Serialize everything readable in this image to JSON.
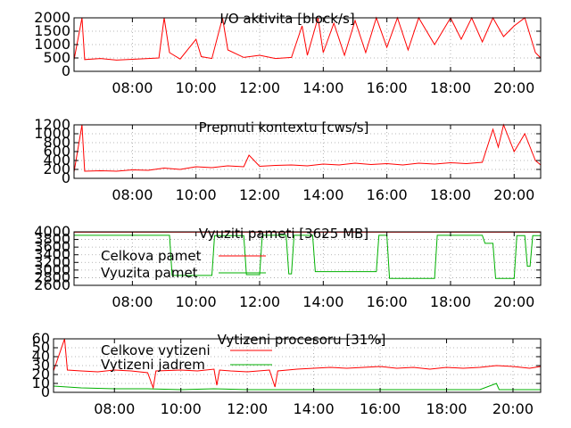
{
  "colors": {
    "red": "#ff0000",
    "green": "#00b000",
    "axis": "#000000",
    "grid": "#a0a0a0"
  },
  "chart_data": [
    {
      "type": "line",
      "title": "I/O aktivita [block/s]",
      "x_range": [
        "06:10",
        "20:50"
      ],
      "x_ticks": [
        "08:00",
        "10:00",
        "12:00",
        "14:00",
        "16:00",
        "18:00",
        "20:00"
      ],
      "y_ticks": [
        "0",
        "500",
        "1000",
        "1500",
        "2000"
      ],
      "ylim": [
        0,
        2000
      ],
      "series": [
        {
          "color": "#ff0000",
          "points": [
            [
              "06:10",
              430
            ],
            [
              "06:25",
              2000
            ],
            [
              "06:30",
              440
            ],
            [
              "07:00",
              480
            ],
            [
              "07:30",
              420
            ],
            [
              "08:00",
              450
            ],
            [
              "08:30",
              480
            ],
            [
              "08:50",
              500
            ],
            [
              "09:00",
              2000
            ],
            [
              "09:10",
              700
            ],
            [
              "09:30",
              460
            ],
            [
              "10:00",
              1200
            ],
            [
              "10:10",
              550
            ],
            [
              "10:30",
              480
            ],
            [
              "10:50",
              2000
            ],
            [
              "11:00",
              800
            ],
            [
              "11:30",
              520
            ],
            [
              "12:00",
              600
            ],
            [
              "12:30",
              480
            ],
            [
              "13:00",
              520
            ],
            [
              "13:20",
              1700
            ],
            [
              "13:30",
              600
            ],
            [
              "13:50",
              2000
            ],
            [
              "14:00",
              700
            ],
            [
              "14:20",
              1800
            ],
            [
              "14:40",
              600
            ],
            [
              "15:00",
              1900
            ],
            [
              "15:20",
              700
            ],
            [
              "15:40",
              2000
            ],
            [
              "16:00",
              900
            ],
            [
              "16:20",
              2000
            ],
            [
              "16:40",
              800
            ],
            [
              "17:00",
              2000
            ],
            [
              "17:30",
              1000
            ],
            [
              "18:00",
              2000
            ],
            [
              "18:20",
              1200
            ],
            [
              "18:40",
              2000
            ],
            [
              "19:00",
              1100
            ],
            [
              "19:20",
              2000
            ],
            [
              "19:40",
              1300
            ],
            [
              "20:00",
              1700
            ],
            [
              "20:20",
              2000
            ],
            [
              "20:40",
              700
            ],
            [
              "20:50",
              500
            ]
          ]
        }
      ]
    },
    {
      "type": "line",
      "title": "Prepnuti kontextu [cws/s]",
      "x_range": [
        "06:10",
        "20:50"
      ],
      "x_ticks": [
        "08:00",
        "10:00",
        "12:00",
        "14:00",
        "16:00",
        "18:00",
        "20:00"
      ],
      "y_ticks": [
        "0",
        "200",
        "400",
        "600",
        "800",
        "1000",
        "1200"
      ],
      "ylim": [
        0,
        1200
      ],
      "series": [
        {
          "color": "#ff0000",
          "points": [
            [
              "06:10",
              140
            ],
            [
              "06:25",
              1200
            ],
            [
              "06:30",
              160
            ],
            [
              "07:00",
              170
            ],
            [
              "07:30",
              160
            ],
            [
              "08:00",
              190
            ],
            [
              "08:30",
              180
            ],
            [
              "09:00",
              230
            ],
            [
              "09:30",
              200
            ],
            [
              "10:00",
              260
            ],
            [
              "10:30",
              240
            ],
            [
              "11:00",
              280
            ],
            [
              "11:30",
              260
            ],
            [
              "11:40",
              520
            ],
            [
              "12:00",
              270
            ],
            [
              "12:30",
              290
            ],
            [
              "13:00",
              300
            ],
            [
              "13:30",
              280
            ],
            [
              "14:00",
              320
            ],
            [
              "14:30",
              300
            ],
            [
              "15:00",
              340
            ],
            [
              "15:30",
              310
            ],
            [
              "16:00",
              330
            ],
            [
              "16:30",
              300
            ],
            [
              "17:00",
              340
            ],
            [
              "17:30",
              320
            ],
            [
              "18:00",
              350
            ],
            [
              "18:30",
              330
            ],
            [
              "19:00",
              360
            ],
            [
              "19:20",
              1100
            ],
            [
              "19:30",
              700
            ],
            [
              "19:40",
              1200
            ],
            [
              "20:00",
              600
            ],
            [
              "20:20",
              1000
            ],
            [
              "20:40",
              400
            ],
            [
              "20:50",
              300
            ]
          ]
        }
      ]
    },
    {
      "type": "line",
      "title": "Vyuziti pameti [3625 MB]",
      "x_range": [
        "06:10",
        "20:50"
      ],
      "x_ticks": [
        "08:00",
        "10:00",
        "12:00",
        "14:00",
        "16:00",
        "18:00",
        "20:00"
      ],
      "y_ticks": [
        "2600",
        "2800",
        "3000",
        "3200",
        "3400",
        "3600",
        "3800",
        "4000"
      ],
      "ylim": [
        2600,
        4000
      ],
      "series": [
        {
          "name": "Celkova pamet",
          "color": "#ff0000",
          "points": [
            [
              "06:10",
              3990
            ],
            [
              "20:50",
              3990
            ]
          ]
        },
        {
          "name": "Vyuzita pamet",
          "color": "#00b000",
          "points": [
            [
              "06:10",
              3910
            ],
            [
              "09:10",
              3910
            ],
            [
              "09:15",
              2860
            ],
            [
              "10:30",
              2860
            ],
            [
              "10:35",
              3900
            ],
            [
              "11:30",
              3900
            ],
            [
              "11:35",
              2880
            ],
            [
              "12:00",
              2880
            ],
            [
              "12:05",
              3910
            ],
            [
              "12:50",
              3910
            ],
            [
              "12:55",
              2900
            ],
            [
              "13:00",
              2900
            ],
            [
              "13:05",
              3910
            ],
            [
              "13:40",
              3910
            ],
            [
              "13:45",
              2960
            ],
            [
              "15:40",
              2960
            ],
            [
              "15:45",
              3910
            ],
            [
              "16:00",
              3910
            ],
            [
              "16:05",
              2780
            ],
            [
              "17:30",
              2780
            ],
            [
              "17:35",
              3910
            ],
            [
              "19:00",
              3910
            ],
            [
              "19:05",
              3700
            ],
            [
              "19:20",
              3700
            ],
            [
              "19:25",
              2780
            ],
            [
              "20:00",
              2780
            ],
            [
              "20:05",
              3900
            ],
            [
              "20:20",
              3900
            ],
            [
              "20:25",
              3100
            ],
            [
              "20:30",
              3100
            ],
            [
              "20:35",
              3900
            ],
            [
              "20:50",
              3900
            ]
          ]
        }
      ]
    },
    {
      "type": "line",
      "title": "Vytizeni procesoru [31%]",
      "x_range": [
        "06:10",
        "20:50"
      ],
      "x_ticks": [
        "08:00",
        "10:00",
        "12:00",
        "14:00",
        "16:00",
        "18:00",
        "20:00"
      ],
      "y_ticks": [
        "0",
        "10",
        "20",
        "30",
        "40",
        "50",
        "60"
      ],
      "ylim": [
        0,
        60
      ],
      "series": [
        {
          "name": "Celkove vytizeni",
          "color": "#ff0000",
          "points": [
            [
              "06:10",
              24
            ],
            [
              "06:30",
              60
            ],
            [
              "06:35",
              25
            ],
            [
              "07:00",
              24
            ],
            [
              "07:30",
              23
            ],
            [
              "08:00",
              25
            ],
            [
              "08:30",
              24
            ],
            [
              "09:00",
              22
            ],
            [
              "09:10",
              5
            ],
            [
              "09:15",
              24
            ],
            [
              "10:00",
              25
            ],
            [
              "10:30",
              24
            ],
            [
              "11:00",
              26
            ],
            [
              "11:05",
              8
            ],
            [
              "11:10",
              25
            ],
            [
              "11:30",
              24
            ],
            [
              "12:00",
              23
            ],
            [
              "12:40",
              25
            ],
            [
              "12:50",
              6
            ],
            [
              "12:55",
              24
            ],
            [
              "13:30",
              26
            ],
            [
              "14:00",
              27
            ],
            [
              "14:30",
              28
            ],
            [
              "15:00",
              27
            ],
            [
              "15:30",
              28
            ],
            [
              "16:00",
              29
            ],
            [
              "16:30",
              27
            ],
            [
              "17:00",
              28
            ],
            [
              "17:30",
              26
            ],
            [
              "18:00",
              28
            ],
            [
              "18:30",
              27
            ],
            [
              "19:00",
              28
            ],
            [
              "19:30",
              30
            ],
            [
              "20:00",
              29
            ],
            [
              "20:30",
              27
            ],
            [
              "20:50",
              29
            ]
          ]
        },
        {
          "name": "Vytizeni jadrem",
          "color": "#00b000",
          "points": [
            [
              "06:10",
              7
            ],
            [
              "07:00",
              5
            ],
            [
              "08:00",
              4
            ],
            [
              "09:00",
              4
            ],
            [
              "10:00",
              3
            ],
            [
              "11:00",
              4
            ],
            [
              "12:00",
              3
            ],
            [
              "13:00",
              3
            ],
            [
              "14:00",
              3
            ],
            [
              "15:00",
              3
            ],
            [
              "16:00",
              3
            ],
            [
              "17:00",
              3
            ],
            [
              "18:00",
              3
            ],
            [
              "19:00",
              3
            ],
            [
              "19:30",
              10
            ],
            [
              "19:35",
              3
            ],
            [
              "20:00",
              3
            ],
            [
              "20:50",
              3
            ]
          ]
        }
      ]
    }
  ]
}
